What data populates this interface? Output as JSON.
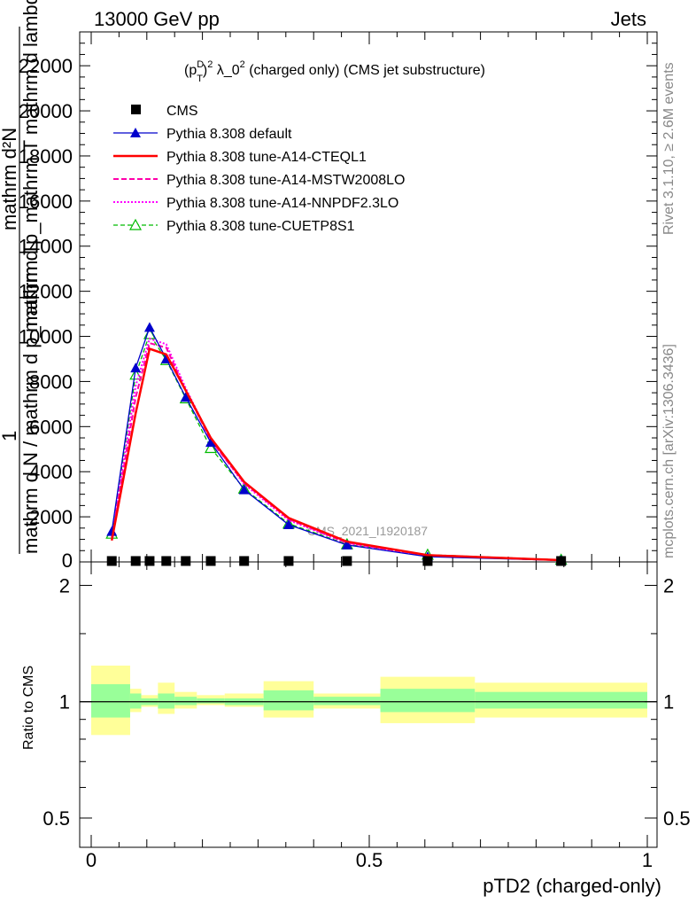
{
  "header": {
    "left": "13000 GeV pp",
    "right": "Jets"
  },
  "side_labels": {
    "rivet": "Rivet 3.1.10, ≥ 2.6M events",
    "mcplots": "mcplots.cern.ch [arXiv:1306.3436]"
  },
  "watermark": "CMS_2021_I1920187",
  "colors": {
    "cms": "#000000",
    "default": "#0000cc",
    "cteql1": "#ff0000",
    "mstw": "#ff00aa",
    "nnpdf": "#ff00ff",
    "cuetp8s1": "#00bb00",
    "band_inner": "#99ff99",
    "band_outer": "#ffff99"
  },
  "chart_data": [
    {
      "type": "line",
      "title": "(p_T^D)^2 λ_0^2 (charged only) (CMS jet substructure)",
      "title_parts": {
        "pre": "(p",
        "sup1": "D",
        "sub1": "T",
        "mid": ")",
        "sup2": "2",
        "main": " λ_0",
        "sup3": "2",
        "post": " (charged only) (CMS jet substructure)"
      },
      "xlabel": "pTD2 (charged-only)",
      "ylabel_top": "mathrm d²N",
      "ylabel_mid": "mathrm d p_mathrm T mathrm d lambda",
      "ylabel_one": "1",
      "ylabel_bot": "mathrm d N / mathrm d p_mathrm T",
      "xlim": [
        0,
        1
      ],
      "ylim": [
        0,
        23500
      ],
      "yticks": [
        2000,
        4000,
        6000,
        8000,
        10000,
        12000,
        14000,
        16000,
        18000,
        20000,
        22000
      ],
      "ytick_labels": [
        "2000",
        "4000",
        "6000",
        "8000",
        "10000",
        "12000",
        "14000",
        "16000",
        "18000",
        "20000",
        "22000"
      ],
      "bottom_tick_label": "0",
      "legend_position": "top-left",
      "legend": [
        {
          "label": "CMS",
          "key": "cms"
        },
        {
          "label": "Pythia 8.308 default",
          "key": "default"
        },
        {
          "label": "Pythia 8.308 tune-A14-CTEQL1",
          "key": "cteql1"
        },
        {
          "label": "Pythia 8.308 tune-A14-MSTW2008LO",
          "key": "mstw"
        },
        {
          "label": "Pythia 8.308 tune-A14-NNPDF2.3LO",
          "key": "nnpdf"
        },
        {
          "label": "Pythia 8.308 tune-CUETP8S1",
          "key": "cuetp8s1"
        }
      ],
      "x": [
        0.037,
        0.08,
        0.105,
        0.135,
        0.17,
        0.215,
        0.275,
        0.355,
        0.46,
        0.605,
        0.845
      ],
      "series": [
        {
          "name": "CMS",
          "key": "cms",
          "values": [
            40,
            40,
            40,
            40,
            40,
            40,
            40,
            40,
            40,
            40,
            40
          ]
        },
        {
          "name": "Pythia 8.308 default",
          "key": "default",
          "values": [
            1350,
            8600,
            10400,
            9000,
            7300,
            5300,
            3200,
            1650,
            750,
            230,
            70
          ]
        },
        {
          "name": "Pythia 8.308 tune-A14-CTEQL1",
          "key": "cteql1",
          "values": [
            950,
            6600,
            9450,
            9200,
            7600,
            5500,
            3550,
            1950,
            900,
            300,
            80
          ]
        },
        {
          "name": "Pythia 8.308 tune-A14-MSTW2008LO",
          "key": "mstw",
          "values": [
            1050,
            7300,
            9700,
            9500,
            7600,
            5400,
            3500,
            1900,
            850,
            280,
            75
          ]
        },
        {
          "name": "Pythia 8.308 tune-A14-NNPDF2.3LO",
          "key": "nnpdf",
          "values": [
            1100,
            7800,
            9900,
            9650,
            7700,
            5450,
            3450,
            1850,
            830,
            270,
            75
          ]
        },
        {
          "name": "Pythia 8.308 tune-CUETP8S1",
          "key": "cuetp8s1",
          "values": [
            1250,
            8300,
            10100,
            8950,
            7250,
            5050,
            3250,
            1700,
            780,
            320,
            95
          ]
        }
      ]
    },
    {
      "type": "area",
      "ylabel": "Ratio to CMS",
      "xlabel": "pTD2 (charged-only)",
      "xlim": [
        0,
        1
      ],
      "ylim": [
        0.42,
        2.3
      ],
      "yscale": "log",
      "yticks": [
        0.5,
        1,
        2
      ],
      "ytick_labels": [
        "0.5",
        "1",
        "2"
      ],
      "xticks": [
        0,
        0.5,
        1
      ],
      "xtick_labels": [
        "0",
        "0.5",
        "1"
      ],
      "reference": 1,
      "bins": [
        {
          "lo": 0.0,
          "hi": 0.07,
          "inner": [
            0.91,
            1.11
          ],
          "outer": [
            0.82,
            1.24
          ]
        },
        {
          "lo": 0.07,
          "hi": 0.09,
          "inner": [
            0.96,
            1.05
          ],
          "outer": [
            0.94,
            1.08
          ]
        },
        {
          "lo": 0.09,
          "hi": 0.12,
          "inner": [
            0.98,
            1.02
          ],
          "outer": [
            0.97,
            1.04
          ]
        },
        {
          "lo": 0.12,
          "hi": 0.15,
          "inner": [
            0.96,
            1.05
          ],
          "outer": [
            0.93,
            1.12
          ]
        },
        {
          "lo": 0.15,
          "hi": 0.19,
          "inner": [
            0.98,
            1.03
          ],
          "outer": [
            0.96,
            1.06
          ]
        },
        {
          "lo": 0.19,
          "hi": 0.24,
          "inner": [
            0.99,
            1.02
          ],
          "outer": [
            0.98,
            1.04
          ]
        },
        {
          "lo": 0.24,
          "hi": 0.31,
          "inner": [
            0.98,
            1.02
          ],
          "outer": [
            0.97,
            1.05
          ]
        },
        {
          "lo": 0.31,
          "hi": 0.4,
          "inner": [
            0.95,
            1.07
          ],
          "outer": [
            0.91,
            1.13
          ]
        },
        {
          "lo": 0.4,
          "hi": 0.52,
          "inner": [
            0.98,
            1.03
          ],
          "outer": [
            0.96,
            1.05
          ]
        },
        {
          "lo": 0.52,
          "hi": 0.69,
          "inner": [
            0.94,
            1.08
          ],
          "outer": [
            0.88,
            1.16
          ]
        },
        {
          "lo": 0.69,
          "hi": 1.0,
          "inner": [
            0.96,
            1.06
          ],
          "outer": [
            0.91,
            1.12
          ]
        }
      ]
    }
  ]
}
